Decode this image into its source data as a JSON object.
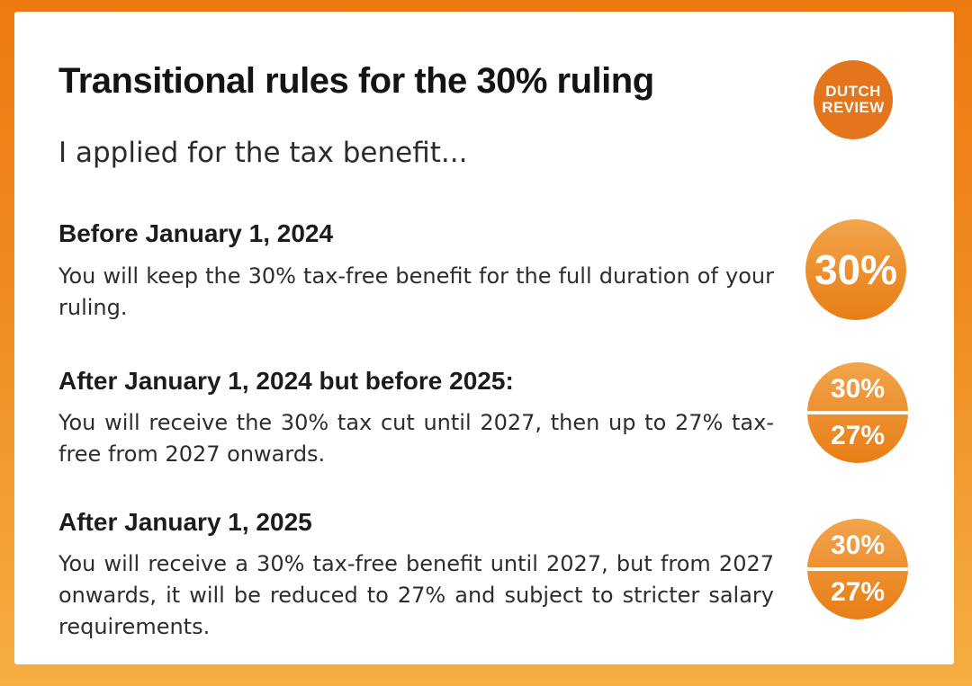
{
  "page": {
    "title": "Transitional rules for the 30% ruling",
    "subtitle": "I applied for the tax benefit...",
    "logo": {
      "line1": "DUTCH",
      "line2": "REVIEW"
    },
    "sections": [
      {
        "heading": "Before January 1, 2024",
        "body": "You will keep the 30% tax-free benefit for the full duration of your ruling.",
        "badge": {
          "values": [
            "30%"
          ]
        }
      },
      {
        "heading": "After January 1, 2024 but before 2025:",
        "body": "You will receive the 30% tax cut until 2027, then up to 27% tax-free from 2027 onwards.",
        "badge": {
          "values": [
            "30%",
            "27%"
          ]
        }
      },
      {
        "heading": "After January 1, 2025",
        "body": "You will receive a 30% tax-free benefit until 2027, but from 2027 onwards, it will be reduced to 27% and subject to stricter salary requirements.",
        "badge": {
          "values": [
            "30%",
            "27%"
          ]
        }
      }
    ],
    "colors": {
      "border_gradient_top": "#EC7A10",
      "border_gradient_bottom": "#F5AE43",
      "card_background": "#FFFFFF",
      "logo_orange": "#E3751D",
      "badge_gradient_top": "#F2A54C",
      "badge_gradient_bottom": "#E87E15",
      "title_text": "#141414",
      "body_text": "#2D2D2D"
    }
  }
}
